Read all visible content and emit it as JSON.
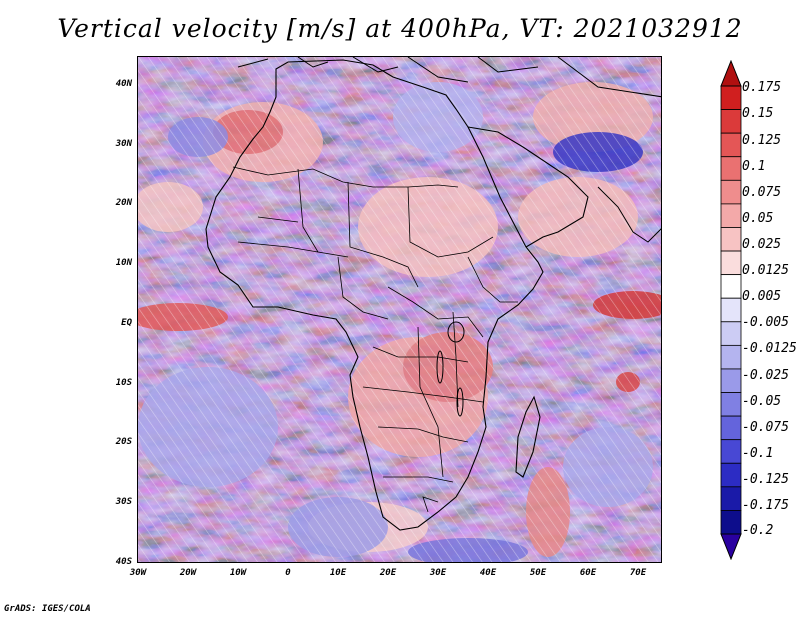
{
  "title": "Vertical velocity [m/s] at 400hPa, VT: 2021032912",
  "credit": "GrADS: IGES/COLA",
  "axes": {
    "lat_labels": [
      "40N",
      "30N",
      "20N",
      "10N",
      "EQ",
      "10S",
      "20S",
      "30S",
      "40S"
    ],
    "lon_labels": [
      "30W",
      "20W",
      "10W",
      "0",
      "10E",
      "20E",
      "30E",
      "40E",
      "50E",
      "60E",
      "70E"
    ],
    "lat_range": [
      -40,
      45
    ],
    "lon_range": [
      -30,
      75
    ]
  },
  "colorbar": {
    "labels": [
      "0.175",
      "0.15",
      "0.125",
      "0.1",
      "0.075",
      "0.05",
      "0.025",
      "0.0125",
      "0.005",
      "-0.005",
      "-0.0125",
      "-0.025",
      "-0.05",
      "-0.075",
      "-0.1",
      "-0.125",
      "-0.175",
      "-0.2"
    ],
    "colors": [
      "#d01f1f",
      "#db3a3a",
      "#e45656",
      "#ea7171",
      "#ef8d8d",
      "#f3a9a9",
      "#f7c3c3",
      "#fadddd",
      "#ffffff",
      "#e4e4fa",
      "#ccccf4",
      "#b4b4ef",
      "#9a9ae9",
      "#8080e3",
      "#6464dc",
      "#4848d4",
      "#2c2cc4",
      "#1a1aa8",
      "#0d0d8c"
    ],
    "max_arrow_color": "#b01010",
    "min_arrow_color": "#2a00a0"
  },
  "colors": {
    "background_field": "#d8d8f6",
    "coastline": "#000000"
  },
  "features": {
    "coastline": "coastline-africa",
    "borders": "country-borders",
    "field": "vertical-velocity-field"
  }
}
